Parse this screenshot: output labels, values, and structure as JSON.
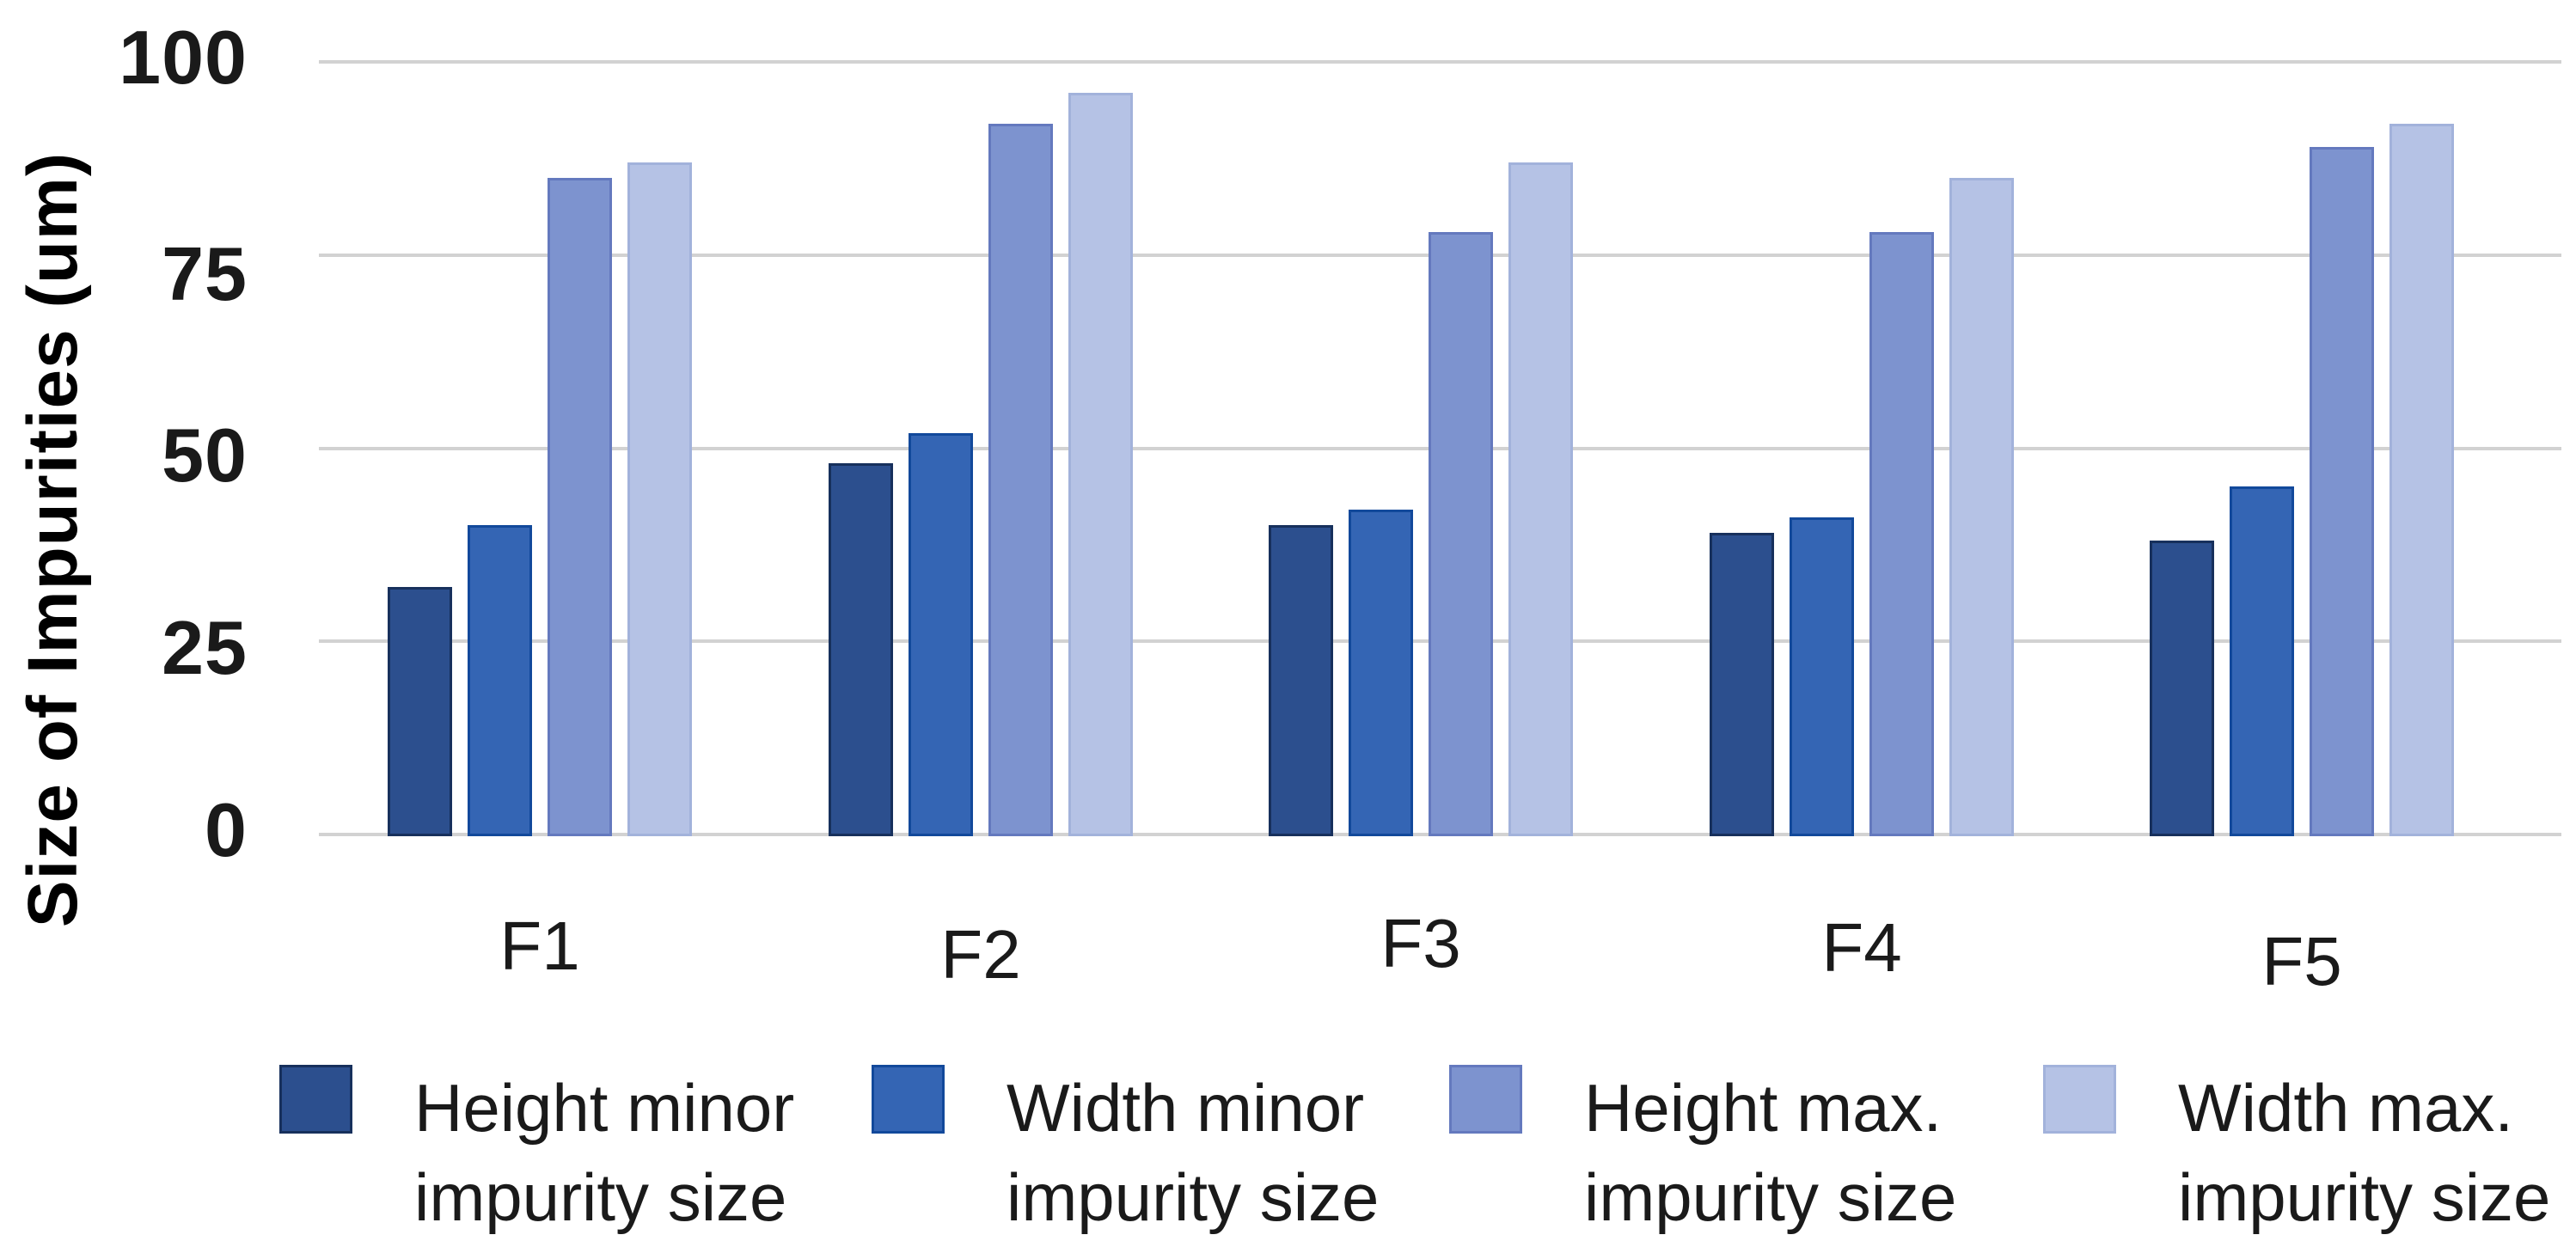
{
  "chart_data": {
    "type": "bar",
    "title": "",
    "xlabel": "",
    "ylabel": "Size of Impurities (um)",
    "categories": [
      "F1",
      "F2",
      "F3",
      "F4",
      "F5"
    ],
    "series": [
      {
        "name": "Height minor impurity size",
        "legend_line1": "Height minor",
        "legend_line2": "impurity size",
        "color": "#2c4f8e",
        "border_color": "#17305c",
        "values": [
          32,
          48,
          40,
          39,
          38
        ]
      },
      {
        "name": "Width minor impurity size",
        "legend_line1": "Width minor",
        "legend_line2": "impurity size",
        "color": "#3465b4",
        "border_color": "#12499b",
        "values": [
          40,
          52,
          42,
          41,
          45
        ]
      },
      {
        "name": "Height max. impurity size",
        "legend_line1": "Height max.",
        "legend_line2": "impurity size",
        "color": "#7d93cf",
        "border_color": "#6479be",
        "values": [
          85,
          92,
          78,
          78,
          89
        ]
      },
      {
        "name": "Width max. impurity size",
        "legend_line1": "Width max.",
        "legend_line2": "impurity size",
        "color": "#b5c2e5",
        "border_color": "#a2b2db",
        "values": [
          87,
          96,
          87,
          85,
          92
        ]
      }
    ],
    "ylim": [
      0,
      100
    ],
    "yticks": [
      0,
      25,
      50,
      75,
      100
    ],
    "ytick_labels": [
      "0",
      "25",
      "50",
      "75",
      "100"
    ],
    "grid": true,
    "gridline_color": "#d2d2d2",
    "legend_position": "bottom",
    "background_color": "#ffffff",
    "text_color": "#1a1a1a"
  }
}
